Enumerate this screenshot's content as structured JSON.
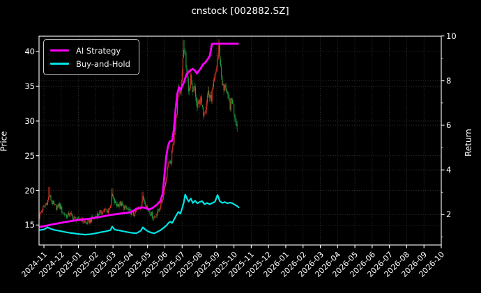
{
  "title": "cnstock [002882.SZ]",
  "legend": {
    "items": [
      {
        "label": "AI Strategy",
        "color": "#ff00ff"
      },
      {
        "label": "Buy-and-Hold",
        "color": "#00e5e6"
      }
    ]
  },
  "chart_data": {
    "type": "candlestick+line",
    "title": "cnstock [002882.SZ]",
    "background": "#000000",
    "grid": true,
    "grid_color": "#ffffff",
    "spine_color": "#ffffff",
    "legend_position": "upper left",
    "x_ticks": [
      "2024-11",
      "2024-12",
      "2025-01",
      "2025-02",
      "2025-03",
      "2025-04",
      "2025-05",
      "2025-06",
      "2025-07",
      "2025-08",
      "2025-09",
      "2025-10",
      "2025-11",
      "2025-12",
      "2026-01",
      "2026-02",
      "2026-03",
      "2026-04",
      "2026-05",
      "2026-06",
      "2026-07",
      "2026-08",
      "2026-09",
      "2026-10"
    ],
    "x_range_months": [
      -0.283,
      23.0
    ],
    "x_data_range": [
      -0.28,
      11.22
    ],
    "candle_interval": 0.0455,
    "left_axis": {
      "label": "Price",
      "ticks": [
        15,
        20,
        25,
        30,
        35,
        40
      ],
      "range": [
        12.12,
        42.24
      ]
    },
    "right_axis": {
      "label": "Return",
      "ticks": [
        2,
        4,
        6,
        8,
        10
      ],
      "minor_ticks": [
        1,
        3,
        5,
        7,
        9
      ],
      "range": [
        0.637,
        9.99
      ]
    },
    "candle_colors": {
      "up": "#e8392b",
      "down": "#1d9e3c"
    },
    "price_series": {
      "name": "002882.SZ daily OHLC (close keypoints, t = months since 2024-11)",
      "keypoints": [
        [
          -0.28,
          16.2
        ],
        [
          -0.15,
          17.0
        ],
        [
          0.0,
          17.6
        ],
        [
          0.2,
          18.4
        ],
        [
          0.32,
          19.3
        ],
        [
          0.45,
          18.4
        ],
        [
          0.6,
          17.8
        ],
        [
          0.75,
          17.5
        ],
        [
          0.9,
          17.9
        ],
        [
          1.05,
          17.0
        ],
        [
          1.2,
          16.5
        ],
        [
          1.35,
          16.3
        ],
        [
          1.5,
          16.7
        ],
        [
          1.65,
          16.1
        ],
        [
          1.8,
          15.9
        ],
        [
          2.0,
          15.7
        ],
        [
          2.15,
          15.9
        ],
        [
          2.3,
          15.5
        ],
        [
          2.5,
          15.3
        ],
        [
          2.7,
          15.7
        ],
        [
          2.9,
          16.1
        ],
        [
          3.1,
          16.5
        ],
        [
          3.3,
          16.8
        ],
        [
          3.5,
          17.1
        ],
        [
          3.7,
          17.0
        ],
        [
          3.85,
          17.9
        ],
        [
          3.95,
          19.4
        ],
        [
          4.05,
          18.4
        ],
        [
          4.2,
          17.9
        ],
        [
          4.4,
          18.1
        ],
        [
          4.6,
          17.6
        ],
        [
          4.8,
          17.3
        ],
        [
          5.0,
          16.9
        ],
        [
          5.2,
          16.5
        ],
        [
          5.4,
          17.1
        ],
        [
          5.6,
          17.7
        ],
        [
          5.73,
          18.9
        ],
        [
          5.85,
          18.3
        ],
        [
          6.0,
          17.4
        ],
        [
          6.2,
          16.6
        ],
        [
          6.35,
          16.1
        ],
        [
          6.5,
          16.6
        ],
        [
          6.65,
          17.2
        ],
        [
          6.8,
          18.3
        ],
        [
          6.95,
          19.8
        ],
        [
          7.1,
          22.3
        ],
        [
          7.2,
          24.3
        ],
        [
          7.32,
          23.4
        ],
        [
          7.45,
          26.0
        ],
        [
          7.55,
          28.5
        ],
        [
          7.68,
          31.5
        ],
        [
          7.8,
          35.0
        ],
        [
          7.88,
          33.8
        ],
        [
          8.0,
          37.3
        ],
        [
          8.08,
          39.8
        ],
        [
          8.15,
          40.8
        ],
        [
          8.22,
          37.8
        ],
        [
          8.32,
          35.8
        ],
        [
          8.42,
          34.2
        ],
        [
          8.5,
          36.0
        ],
        [
          8.6,
          33.6
        ],
        [
          8.72,
          35.0
        ],
        [
          8.85,
          31.8
        ],
        [
          8.95,
          32.6
        ],
        [
          9.05,
          33.4
        ],
        [
          9.2,
          31.2
        ],
        [
          9.35,
          32.0
        ],
        [
          9.5,
          34.3
        ],
        [
          9.65,
          33.0
        ],
        [
          9.8,
          34.8
        ],
        [
          9.95,
          36.8
        ],
        [
          10.08,
          39.8
        ],
        [
          10.15,
          40.6
        ],
        [
          10.25,
          37.0
        ],
        [
          10.4,
          34.2
        ],
        [
          10.52,
          35.4
        ],
        [
          10.65,
          33.0
        ],
        [
          10.78,
          32.2
        ],
        [
          10.9,
          33.2
        ],
        [
          11.0,
          31.4
        ],
        [
          11.1,
          30.2
        ],
        [
          11.22,
          29.2
        ]
      ]
    },
    "spikes": [
      [
        0.32,
        20.5,
        null
      ],
      [
        3.95,
        20.3,
        null
      ],
      [
        5.73,
        19.8,
        null
      ],
      [
        8.1,
        41.7,
        null
      ],
      [
        10.12,
        41.8,
        null
      ],
      [
        6.35,
        null,
        15.6
      ],
      [
        11.2,
        null,
        28.4
      ]
    ],
    "series": [
      {
        "name": "AI Strategy",
        "axis": "right",
        "color": "#ff00ff",
        "width": 2.8,
        "points": [
          [
            -0.28,
            1.44
          ],
          [
            0,
            1.48
          ],
          [
            0.5,
            1.56
          ],
          [
            1.0,
            1.63
          ],
          [
            1.5,
            1.7
          ],
          [
            2.0,
            1.76
          ],
          [
            2.5,
            1.8
          ],
          [
            3.0,
            1.86
          ],
          [
            3.5,
            1.93
          ],
          [
            4.0,
            2.0
          ],
          [
            4.5,
            2.05
          ],
          [
            5.0,
            2.1
          ],
          [
            5.2,
            2.18
          ],
          [
            5.35,
            2.26
          ],
          [
            5.7,
            2.32
          ],
          [
            5.9,
            2.3
          ],
          [
            6.05,
            2.22
          ],
          [
            6.2,
            2.26
          ],
          [
            6.35,
            2.33
          ],
          [
            6.55,
            2.45
          ],
          [
            6.75,
            2.62
          ],
          [
            6.88,
            2.95
          ],
          [
            6.98,
            3.8
          ],
          [
            7.08,
            4.6
          ],
          [
            7.18,
            5.05
          ],
          [
            7.28,
            5.28
          ],
          [
            7.42,
            5.3
          ],
          [
            7.52,
            5.8
          ],
          [
            7.62,
            6.7
          ],
          [
            7.72,
            7.4
          ],
          [
            7.82,
            7.7
          ],
          [
            7.92,
            7.58
          ],
          [
            8.0,
            7.76
          ],
          [
            8.12,
            7.95
          ],
          [
            8.25,
            8.28
          ],
          [
            8.45,
            8.45
          ],
          [
            8.6,
            8.52
          ],
          [
            8.75,
            8.45
          ],
          [
            8.85,
            8.32
          ],
          [
            8.95,
            8.42
          ],
          [
            9.05,
            8.52
          ],
          [
            9.2,
            8.72
          ],
          [
            9.35,
            8.82
          ],
          [
            9.5,
            8.98
          ],
          [
            9.6,
            9.1
          ],
          [
            9.66,
            9.35
          ],
          [
            9.72,
            9.63
          ],
          [
            9.8,
            9.65
          ],
          [
            11.27,
            9.65
          ]
        ]
      },
      {
        "name": "Buy-and-Hold",
        "axis": "right",
        "color": "#00e5e6",
        "width": 2.2,
        "points": [
          [
            -0.28,
            1.3
          ],
          [
            0.0,
            1.33
          ],
          [
            0.22,
            1.43
          ],
          [
            0.4,
            1.36
          ],
          [
            0.6,
            1.31
          ],
          [
            0.9,
            1.27
          ],
          [
            1.2,
            1.22
          ],
          [
            1.5,
            1.18
          ],
          [
            1.8,
            1.15
          ],
          [
            2.1,
            1.12
          ],
          [
            2.4,
            1.1
          ],
          [
            2.7,
            1.12
          ],
          [
            3.0,
            1.16
          ],
          [
            3.3,
            1.21
          ],
          [
            3.6,
            1.25
          ],
          [
            3.85,
            1.3
          ],
          [
            3.95,
            1.46
          ],
          [
            4.1,
            1.32
          ],
          [
            4.35,
            1.29
          ],
          [
            4.6,
            1.25
          ],
          [
            4.85,
            1.21
          ],
          [
            5.1,
            1.18
          ],
          [
            5.35,
            1.16
          ],
          [
            5.6,
            1.27
          ],
          [
            5.73,
            1.43
          ],
          [
            5.88,
            1.32
          ],
          [
            6.05,
            1.24
          ],
          [
            6.25,
            1.18
          ],
          [
            6.4,
            1.16
          ],
          [
            6.55,
            1.22
          ],
          [
            6.75,
            1.3
          ],
          [
            6.95,
            1.42
          ],
          [
            7.1,
            1.52
          ],
          [
            7.22,
            1.63
          ],
          [
            7.32,
            1.68
          ],
          [
            7.42,
            1.62
          ],
          [
            7.52,
            1.76
          ],
          [
            7.65,
            1.95
          ],
          [
            7.78,
            2.12
          ],
          [
            7.9,
            2.04
          ],
          [
            8.0,
            2.28
          ],
          [
            8.1,
            2.55
          ],
          [
            8.18,
            2.9
          ],
          [
            8.28,
            2.72
          ],
          [
            8.38,
            2.58
          ],
          [
            8.5,
            2.72
          ],
          [
            8.62,
            2.52
          ],
          [
            8.75,
            2.62
          ],
          [
            8.88,
            2.5
          ],
          [
            9.0,
            2.56
          ],
          [
            9.15,
            2.6
          ],
          [
            9.3,
            2.46
          ],
          [
            9.45,
            2.52
          ],
          [
            9.6,
            2.46
          ],
          [
            9.75,
            2.52
          ],
          [
            9.9,
            2.58
          ],
          [
            10.05,
            2.88
          ],
          [
            10.18,
            2.6
          ],
          [
            10.32,
            2.52
          ],
          [
            10.48,
            2.56
          ],
          [
            10.62,
            2.5
          ],
          [
            10.78,
            2.54
          ],
          [
            10.92,
            2.5
          ],
          [
            11.05,
            2.44
          ],
          [
            11.18,
            2.38
          ],
          [
            11.3,
            2.3
          ]
        ]
      }
    ]
  }
}
